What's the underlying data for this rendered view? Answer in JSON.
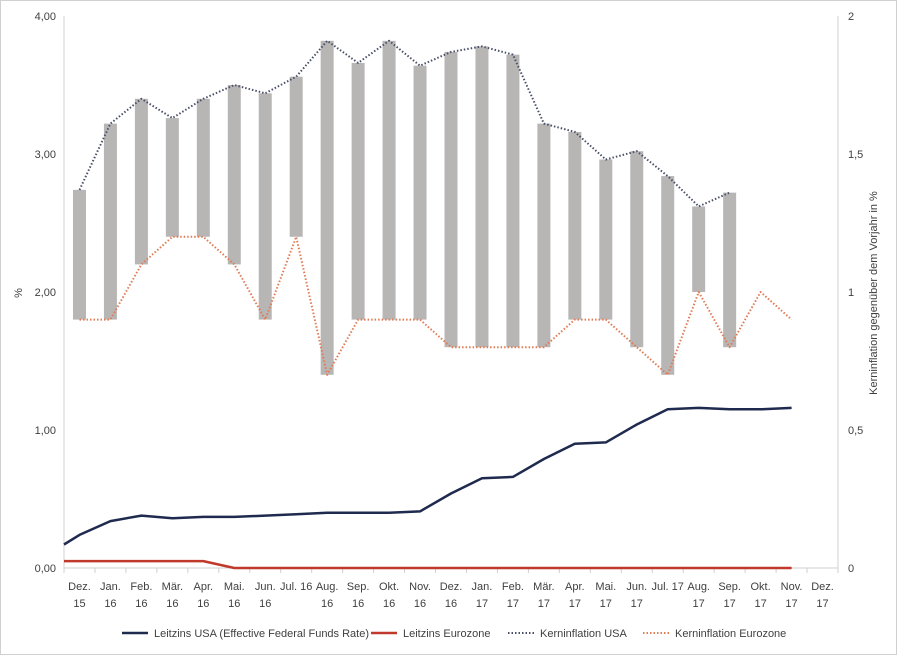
{
  "chart_data": {
    "type": "line",
    "categories": [
      [
        "Dez.",
        "15"
      ],
      [
        "Jan.",
        "16"
      ],
      [
        "Feb.",
        "16"
      ],
      [
        "Mär.",
        "16"
      ],
      [
        "Apr.",
        "16"
      ],
      [
        "Mai.",
        "16"
      ],
      [
        "Jun.",
        "16"
      ],
      [
        "Jul. 16",
        ""
      ],
      [
        "Aug.",
        "16"
      ],
      [
        "Sep.",
        "16"
      ],
      [
        "Okt.",
        "16"
      ],
      [
        "Nov.",
        "16"
      ],
      [
        "Dez.",
        "16"
      ],
      [
        "Jan.",
        "17"
      ],
      [
        "Feb.",
        "17"
      ],
      [
        "Mär.",
        "17"
      ],
      [
        "Apr.",
        "17"
      ],
      [
        "Mai.",
        "17"
      ],
      [
        "Jun.",
        "17"
      ],
      [
        "Jul. 17",
        ""
      ],
      [
        "Aug.",
        "17"
      ],
      [
        "Sep.",
        "17"
      ],
      [
        "Okt.",
        "17"
      ],
      [
        "Nov.",
        "17"
      ],
      [
        "Dez.",
        "17"
      ]
    ],
    "left_axis": {
      "label": "%",
      "ylim": [
        0,
        4
      ],
      "ticks": [
        "0,00",
        "1,00",
        "2,00",
        "3,00",
        "4,00"
      ]
    },
    "right_axis": {
      "label": "Kerninflation gegenüber dem Vorjahr in %",
      "ylim": [
        0,
        2
      ],
      "ticks": [
        "0",
        "0,5",
        "1",
        "1,5",
        "2"
      ]
    },
    "series": [
      {
        "name": "Leitzins USA (Effective Federal Funds Rate)",
        "axis": "left",
        "style": "solid",
        "color": "#1f2a4f",
        "values": [
          0.24,
          0.34,
          0.38,
          0.36,
          0.37,
          0.37,
          0.38,
          0.39,
          0.4,
          0.4,
          0.4,
          0.41,
          0.54,
          0.65,
          0.66,
          0.79,
          0.9,
          0.91,
          1.04,
          1.15,
          1.16,
          1.15,
          1.15,
          1.16,
          null
        ],
        "start_value": 0.17
      },
      {
        "name": "Leitzins Eurozone",
        "axis": "left",
        "style": "solid",
        "color": "#c0392b",
        "values": [
          0.05,
          0.05,
          0.05,
          0.05,
          0.05,
          0.0,
          0.0,
          0.0,
          0.0,
          0.0,
          0.0,
          0.0,
          0.0,
          0.0,
          0.0,
          0.0,
          0.0,
          0.0,
          0.0,
          0.0,
          0.0,
          0.0,
          0.0,
          0.0,
          null
        ],
        "start_value": 0.05
      },
      {
        "name": "Kerninflation USA",
        "axis": "right",
        "style": "dotted",
        "color": "#4a5068",
        "values": [
          1.37,
          1.61,
          1.7,
          1.63,
          1.7,
          1.75,
          1.72,
          1.78,
          1.91,
          1.83,
          1.91,
          1.82,
          1.87,
          1.89,
          1.86,
          1.61,
          1.58,
          1.48,
          1.51,
          1.42,
          1.31,
          1.36,
          null,
          null,
          null
        ]
      },
      {
        "name": "Kerninflation Eurozone",
        "axis": "right",
        "style": "dotted",
        "color": "#e07b54",
        "values": [
          0.9,
          0.9,
          1.1,
          1.2,
          1.2,
          1.1,
          0.9,
          1.2,
          0.7,
          0.9,
          0.9,
          0.9,
          0.8,
          0.8,
          0.8,
          0.8,
          0.9,
          0.9,
          0.8,
          0.7,
          1.0,
          0.8,
          1.0,
          0.9,
          null
        ]
      }
    ],
    "difference_bars": {
      "axis": "right",
      "color": "#b8b5b5",
      "between": [
        "Kerninflation Eurozone",
        "Kerninflation USA"
      ]
    },
    "grid": false,
    "legend_position": "bottom"
  }
}
